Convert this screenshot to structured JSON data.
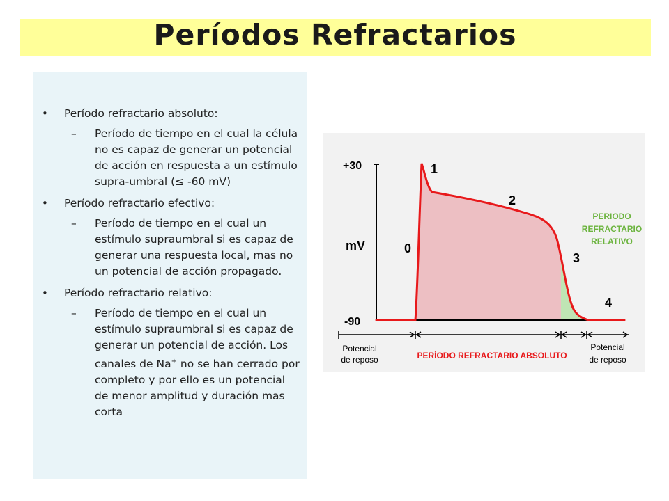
{
  "title": "Períodos Refractarios",
  "bullets": [
    {
      "heading": "Período refractario absoluto:",
      "detail": "Período de tiempo en el cual la célula no es capaz de generar un potencial de acción en respuesta a un estímulo supra-umbral (≤ -60 mV)"
    },
    {
      "heading": "Período refractario efectivo:",
      "detail": "Período de tiempo en el cual un estímulo supraumbral si es capaz de generar una respuesta local, mas no un potencial de acción propagado."
    },
    {
      "heading": "Período refractario relativo:",
      "detail_pre": "Período de tiempo en el cual un estímulo supraumbral si es capaz de generar un potencial de acción. Los canales de Na",
      "detail_sup": "+",
      "detail_post": " no se han cerrado por completo y por ello es un potencial de menor amplitud y duración mas corta"
    }
  ],
  "diagram": {
    "y_top_label": "+30",
    "y_bottom_label": "-90",
    "y_axis_label": "mV",
    "phase_labels": [
      "0",
      "1",
      "2",
      "3",
      "4"
    ],
    "relative_label_lines": [
      "PERIODO",
      "REFRACTARIO",
      "RELATIVO"
    ],
    "absolute_label": "PERÍODO REFRACTARIO ABSOLUTO",
    "rest_left_lines": [
      "Potencial",
      "de reposo"
    ],
    "rest_right_lines": [
      "Potencial",
      "de reposo"
    ],
    "colors": {
      "curve": "#e8191b",
      "absolute_fill": "#edbfc3",
      "relative_fill": "#bfe5b4",
      "relative_text": "#6cb43f",
      "absolute_text": "#e8191b",
      "axis": "#000000"
    }
  }
}
